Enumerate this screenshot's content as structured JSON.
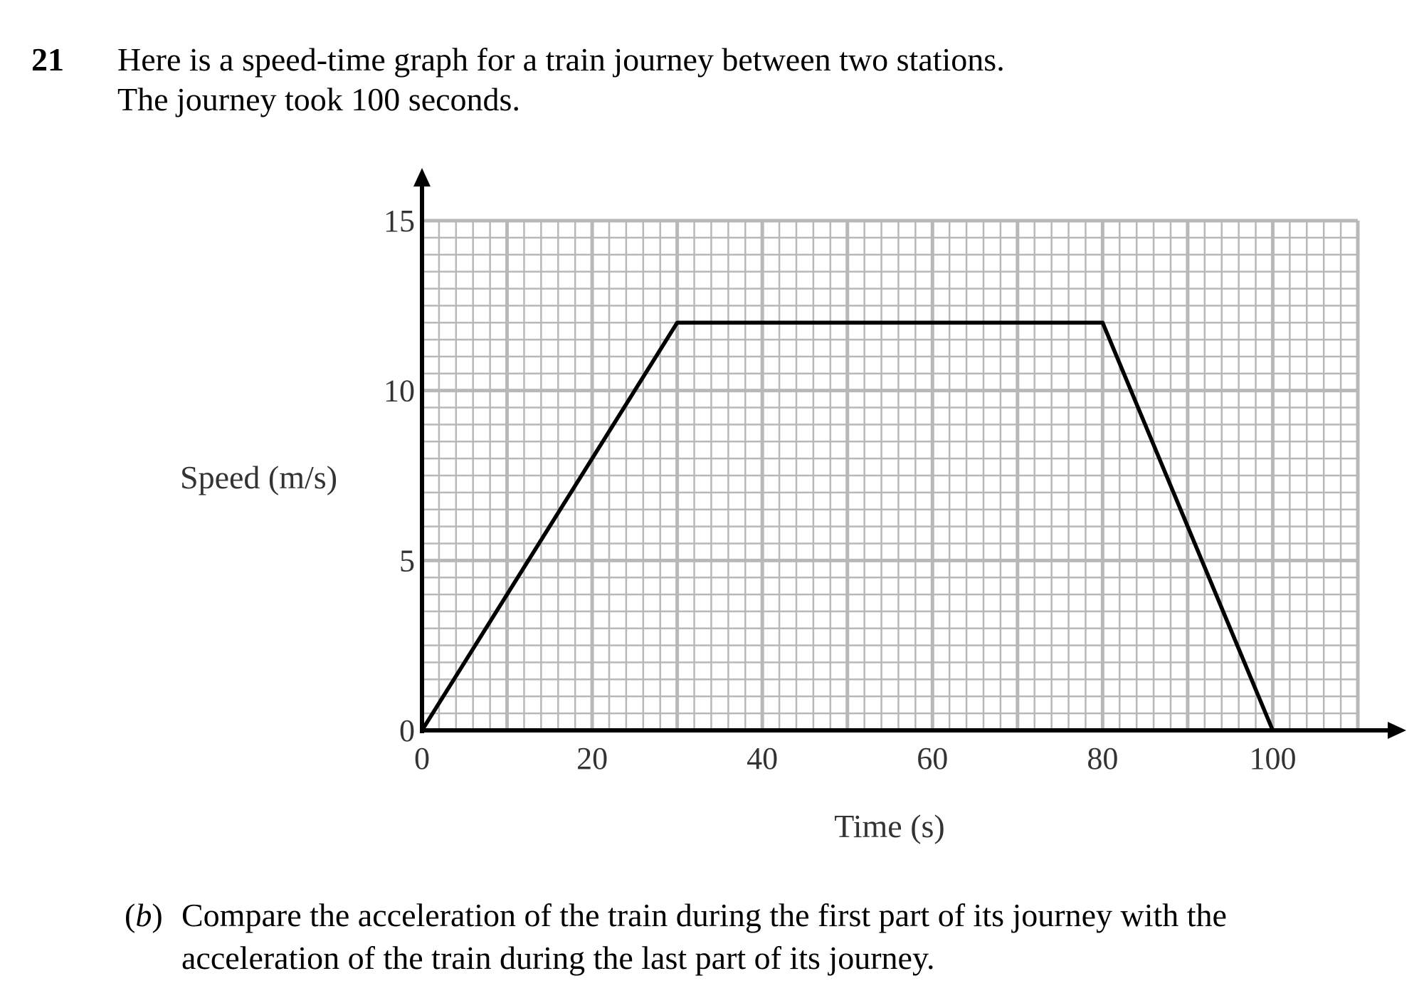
{
  "question": {
    "number": "21",
    "intro_lines": [
      "Here is a speed-time graph for a train journey between two stations.",
      "The journey took 100 seconds."
    ]
  },
  "part_b": {
    "label_open": "(",
    "label_letter": "b",
    "label_close": ")",
    "text_lines": [
      "Compare the acceleration of the train during the first part of its journey with the",
      "acceleration of the train during the last part of its journey."
    ]
  },
  "chart_data": {
    "type": "line",
    "title": "",
    "xlabel": "Time (s)",
    "ylabel": "Speed (m/s)",
    "xlim": [
      0,
      110
    ],
    "ylim": [
      0,
      15
    ],
    "x_ticks": [
      0,
      20,
      40,
      60,
      80,
      100
    ],
    "y_ticks": [
      0,
      5,
      10,
      15
    ],
    "x_tick_labels": [
      "0",
      "20",
      "40",
      "60",
      "80",
      "100"
    ],
    "y_tick_labels": [
      "0",
      "5",
      "10",
      "15"
    ],
    "grid": true,
    "grid_minor_step_x": 2,
    "grid_minor_step_y": 0.5,
    "grid_major_step_x": 10,
    "grid_major_step_y": 5,
    "legend": "none",
    "series": [
      {
        "x": [
          0,
          30,
          80,
          100
        ],
        "y": [
          0,
          12,
          12,
          0
        ],
        "color": "#000000"
      }
    ],
    "colors": {
      "grid": "#b8b8b8",
      "axes": "#000000",
      "tick_text": "#333333"
    }
  }
}
